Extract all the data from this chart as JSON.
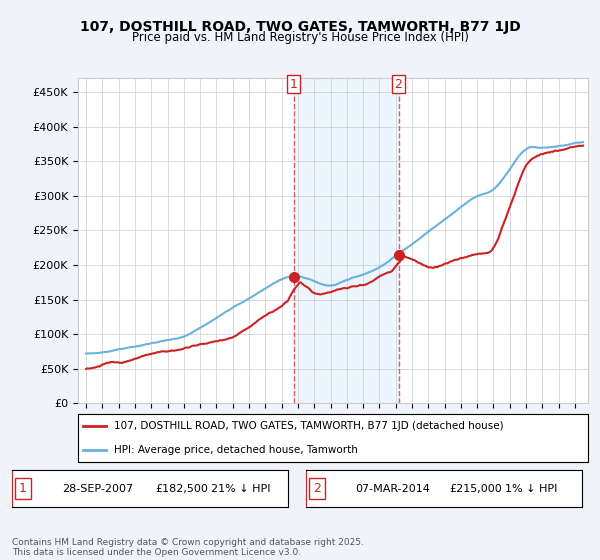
{
  "title": "107, DOSTHILL ROAD, TWO GATES, TAMWORTH, B77 1JD",
  "subtitle": "Price paid vs. HM Land Registry's House Price Index (HPI)",
  "ylabel_ticks": [
    "£0",
    "£50K",
    "£100K",
    "£150K",
    "£200K",
    "£250K",
    "£300K",
    "£350K",
    "£400K",
    "£450K"
  ],
  "ytick_values": [
    0,
    50000,
    100000,
    150000,
    200000,
    250000,
    300000,
    350000,
    400000,
    450000
  ],
  "ylim": [
    0,
    470000
  ],
  "xlim_start": 1994.5,
  "xlim_end": 2025.8,
  "hpi_color": "#6ab0e0",
  "price_color": "#cc2222",
  "transaction_color": "#cc2222",
  "background_color": "#f0f4fa",
  "plot_bg_color": "#ffffff",
  "grid_color": "#cccccc",
  "marker1_x": 2007.75,
  "marker1_y": 182500,
  "marker1_label": "1",
  "marker1_date": "28-SEP-2007",
  "marker1_price": "£182,500",
  "marker1_hpi": "21% ↓ HPI",
  "marker2_x": 2014.17,
  "marker2_y": 215000,
  "marker2_label": "2",
  "marker2_date": "07-MAR-2014",
  "marker2_price": "£215,000",
  "marker2_hpi": "1% ↓ HPI",
  "legend_label1": "107, DOSTHILL ROAD, TWO GATES, TAMWORTH, B77 1JD (detached house)",
  "legend_label2": "HPI: Average price, detached house, Tamworth",
  "footer": "Contains HM Land Registry data © Crown copyright and database right 2025.\nThis data is licensed under the Open Government Licence v3.0.",
  "vline1_x": 2007.75,
  "vline2_x": 2014.17,
  "vline_color": "#cc2222",
  "vband_color": "#ddeeff",
  "vband_alpha": 0.5
}
